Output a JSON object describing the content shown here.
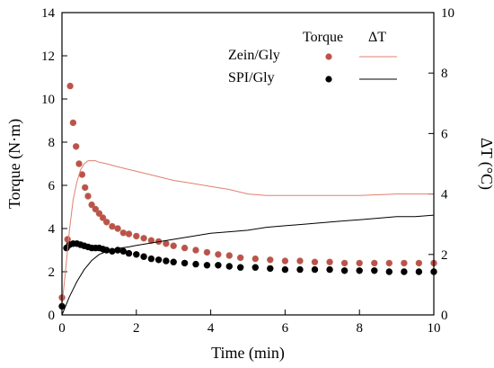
{
  "chart_data": {
    "type": "scatter",
    "xlabel": "Time (min)",
    "ylabel": "Torque (N·m)",
    "y2label": "ΔT (°C)",
    "xlim": [
      0,
      10
    ],
    "ylim": [
      0,
      14
    ],
    "y2lim": [
      0,
      10
    ],
    "x_ticks": [
      "0",
      "2",
      "4",
      "6",
      "8",
      "10"
    ],
    "y_ticks": [
      "0",
      "2",
      "4",
      "6",
      "8",
      "10",
      "12",
      "14"
    ],
    "y2_ticks": [
      "0",
      "2",
      "4",
      "6",
      "8",
      "10"
    ],
    "legend": {
      "header_torque": "Torque",
      "header_dt": "ΔT",
      "entries": [
        "Zein/Gly",
        "SPI/Gly"
      ],
      "placement": "top-right"
    },
    "colors": {
      "zein": "#c0504d",
      "zein_marker_edge": "#b07050",
      "zein_line": "#e08070",
      "spi": "#000000",
      "spi_line": "#000000",
      "axis": "#000000"
    },
    "series": [
      {
        "name": "Zein/Gly",
        "kind": "torque",
        "axis": "left",
        "x": [
          0.0,
          0.15,
          0.22,
          0.3,
          0.38,
          0.46,
          0.54,
          0.62,
          0.7,
          0.8,
          0.9,
          1.0,
          1.1,
          1.2,
          1.35,
          1.5,
          1.65,
          1.8,
          2.0,
          2.2,
          2.4,
          2.6,
          2.8,
          3.0,
          3.3,
          3.6,
          3.9,
          4.2,
          4.5,
          4.8,
          5.2,
          5.6,
          6.0,
          6.4,
          6.8,
          7.2,
          7.6,
          8.0,
          8.4,
          8.8,
          9.2,
          9.6,
          10.0
        ],
        "y": [
          0.8,
          3.5,
          10.6,
          8.9,
          7.8,
          7.0,
          6.5,
          5.9,
          5.5,
          5.1,
          4.9,
          4.7,
          4.5,
          4.3,
          4.1,
          4.0,
          3.8,
          3.75,
          3.65,
          3.55,
          3.45,
          3.4,
          3.3,
          3.2,
          3.1,
          3.0,
          2.9,
          2.8,
          2.75,
          2.65,
          2.6,
          2.55,
          2.5,
          2.5,
          2.45,
          2.45,
          2.4,
          2.4,
          2.4,
          2.4,
          2.4,
          2.4,
          2.4
        ]
      },
      {
        "name": "SPI/Gly",
        "kind": "torque",
        "axis": "left",
        "x": [
          0.0,
          0.12,
          0.2,
          0.3,
          0.4,
          0.5,
          0.6,
          0.7,
          0.8,
          0.9,
          1.0,
          1.1,
          1.2,
          1.35,
          1.5,
          1.65,
          1.8,
          2.0,
          2.2,
          2.4,
          2.6,
          2.8,
          3.0,
          3.3,
          3.6,
          3.9,
          4.2,
          4.5,
          4.8,
          5.2,
          5.6,
          6.0,
          6.4,
          6.8,
          7.2,
          7.6,
          8.0,
          8.4,
          8.8,
          9.2,
          9.6,
          10.0
        ],
        "y": [
          0.4,
          3.1,
          3.25,
          3.3,
          3.3,
          3.25,
          3.2,
          3.15,
          3.1,
          3.1,
          3.1,
          3.05,
          3.0,
          2.95,
          3.0,
          2.95,
          2.85,
          2.8,
          2.7,
          2.6,
          2.55,
          2.5,
          2.45,
          2.4,
          2.35,
          2.3,
          2.3,
          2.25,
          2.2,
          2.2,
          2.15,
          2.1,
          2.1,
          2.1,
          2.1,
          2.05,
          2.05,
          2.05,
          2.0,
          2.0,
          2.0,
          2.0
        ]
      },
      {
        "name": "Zein/Gly",
        "kind": "dT",
        "axis": "right",
        "x": [
          0.0,
          0.1,
          0.2,
          0.3,
          0.4,
          0.5,
          0.6,
          0.7,
          0.8,
          0.9,
          1.0,
          1.2,
          1.5,
          2.0,
          2.5,
          3.0,
          3.5,
          4.0,
          4.5,
          5.0,
          5.5,
          6.0,
          7.0,
          8.0,
          9.0,
          10.0
        ],
        "y": [
          0.3,
          1.5,
          2.8,
          3.8,
          4.4,
          4.8,
          5.0,
          5.1,
          5.1,
          5.1,
          5.05,
          5.0,
          4.9,
          4.75,
          4.6,
          4.45,
          4.35,
          4.25,
          4.15,
          4.0,
          3.95,
          3.95,
          3.95,
          3.95,
          4.0,
          4.0
        ]
      },
      {
        "name": "SPI/Gly",
        "kind": "dT",
        "axis": "right",
        "x": [
          0.0,
          0.2,
          0.4,
          0.6,
          0.8,
          1.0,
          1.2,
          1.5,
          1.8,
          2.0,
          2.5,
          3.0,
          3.5,
          4.0,
          4.5,
          5.0,
          5.5,
          6.0,
          6.5,
          7.0,
          7.5,
          8.0,
          8.5,
          9.0,
          9.5,
          10.0
        ],
        "y": [
          0.0,
          0.6,
          1.1,
          1.5,
          1.8,
          2.0,
          2.1,
          2.2,
          2.25,
          2.3,
          2.4,
          2.5,
          2.6,
          2.7,
          2.75,
          2.8,
          2.9,
          2.95,
          3.0,
          3.05,
          3.1,
          3.15,
          3.2,
          3.25,
          3.25,
          3.3
        ]
      }
    ]
  }
}
